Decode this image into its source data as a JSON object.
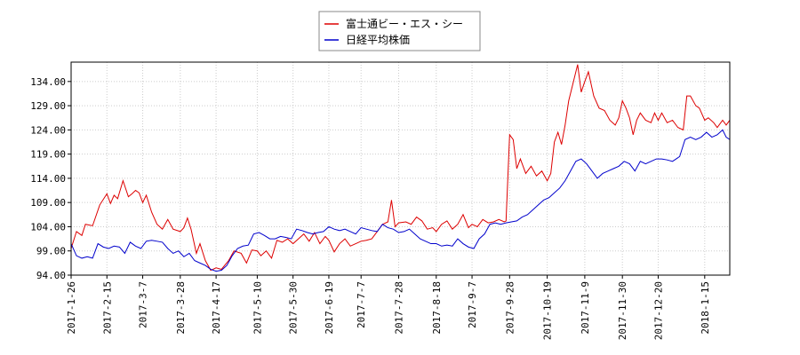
{
  "chart_data": {
    "type": "line",
    "title": "",
    "xlabel": "",
    "ylabel": "",
    "ylim": [
      94.0,
      138.0
    ],
    "y_ticks": [
      "94.00",
      "99.00",
      "104.00",
      "109.00",
      "114.00",
      "119.00",
      "124.00",
      "129.00",
      "134.00"
    ],
    "x_ticks": [
      "2017-1-26",
      "2017-2-15",
      "2017-3-7",
      "2017-3-28",
      "2017-4-17",
      "2017-5-10",
      "2017-5-30",
      "2017-6-19",
      "2017-7-7",
      "2017-7-28",
      "2017-8-18",
      "2017-9-7",
      "2017-9-28",
      "2017-10-19",
      "2017-11-9",
      "2017-11-30",
      "2017-12-20",
      "2018-1-15"
    ],
    "grid": true,
    "legend_position": "top-center",
    "series": [
      {
        "name": "富士通ビー・エス・シー",
        "color": "#dd0000",
        "points": [
          [
            "2017-1-26",
            99.5
          ],
          [
            "2017-1-29",
            103.0
          ],
          [
            "2017-2-1",
            102.2
          ],
          [
            "2017-2-3",
            104.5
          ],
          [
            "2017-2-7",
            104.2
          ],
          [
            "2017-2-11",
            108.5
          ],
          [
            "2017-2-15",
            110.8
          ],
          [
            "2017-2-17",
            108.8
          ],
          [
            "2017-2-19",
            110.5
          ],
          [
            "2017-2-21",
            109.8
          ],
          [
            "2017-2-24",
            113.5
          ],
          [
            "2017-2-27",
            110.2
          ],
          [
            "2017-3-1",
            110.8
          ],
          [
            "2017-3-3",
            111.5
          ],
          [
            "2017-3-5",
            111.0
          ],
          [
            "2017-3-7",
            109.0
          ],
          [
            "2017-3-9",
            110.5
          ],
          [
            "2017-3-12",
            107.0
          ],
          [
            "2017-3-15",
            104.5
          ],
          [
            "2017-3-18",
            103.5
          ],
          [
            "2017-3-21",
            105.5
          ],
          [
            "2017-3-24",
            103.5
          ],
          [
            "2017-3-28",
            103.0
          ],
          [
            "2017-3-30",
            103.8
          ],
          [
            "2017-4-1",
            105.8
          ],
          [
            "2017-4-3",
            103.5
          ],
          [
            "2017-4-6",
            98.5
          ],
          [
            "2017-4-8",
            100.5
          ],
          [
            "2017-4-11",
            97.0
          ],
          [
            "2017-4-14",
            95.0
          ],
          [
            "2017-4-17",
            95.5
          ],
          [
            "2017-4-20",
            95.2
          ],
          [
            "2017-4-24",
            97.0
          ],
          [
            "2017-4-27",
            99.0
          ],
          [
            "2017-5-1",
            98.5
          ],
          [
            "2017-5-4",
            96.5
          ],
          [
            "2017-5-7",
            99.2
          ],
          [
            "2017-5-10",
            99.0
          ],
          [
            "2017-5-12",
            98.0
          ],
          [
            "2017-5-15",
            99.0
          ],
          [
            "2017-5-18",
            97.5
          ],
          [
            "2017-5-21",
            101.2
          ],
          [
            "2017-5-24",
            100.8
          ],
          [
            "2017-5-27",
            101.5
          ],
          [
            "2017-5-30",
            100.5
          ],
          [
            "2017-6-2",
            101.5
          ],
          [
            "2017-6-5",
            102.5
          ],
          [
            "2017-6-8",
            101.0
          ],
          [
            "2017-6-11",
            102.8
          ],
          [
            "2017-6-14",
            100.5
          ],
          [
            "2017-6-17",
            102.0
          ],
          [
            "2017-6-19",
            101.2
          ],
          [
            "2017-6-22",
            98.8
          ],
          [
            "2017-6-25",
            100.5
          ],
          [
            "2017-6-28",
            101.5
          ],
          [
            "2017-7-1",
            100.0
          ],
          [
            "2017-7-4",
            100.5
          ],
          [
            "2017-7-7",
            101.0
          ],
          [
            "2017-7-10",
            101.2
          ],
          [
            "2017-7-13",
            101.5
          ],
          [
            "2017-7-16",
            103.0
          ],
          [
            "2017-7-19",
            104.5
          ],
          [
            "2017-7-22",
            105.0
          ],
          [
            "2017-7-24",
            109.5
          ],
          [
            "2017-7-26",
            104.0
          ],
          [
            "2017-7-28",
            104.8
          ],
          [
            "2017-8-1",
            105.0
          ],
          [
            "2017-8-4",
            104.5
          ],
          [
            "2017-8-7",
            106.0
          ],
          [
            "2017-8-10",
            105.2
          ],
          [
            "2017-8-13",
            103.5
          ],
          [
            "2017-8-16",
            103.8
          ],
          [
            "2017-8-18",
            103.0
          ],
          [
            "2017-8-21",
            104.5
          ],
          [
            "2017-8-24",
            105.2
          ],
          [
            "2017-8-27",
            103.5
          ],
          [
            "2017-8-30",
            104.5
          ],
          [
            "2017-9-2",
            106.5
          ],
          [
            "2017-9-5",
            103.8
          ],
          [
            "2017-9-7",
            104.5
          ],
          [
            "2017-9-10",
            104.0
          ],
          [
            "2017-9-13",
            105.5
          ],
          [
            "2017-9-16",
            104.8
          ],
          [
            "2017-9-19",
            105.0
          ],
          [
            "2017-9-22",
            105.5
          ],
          [
            "2017-9-25",
            105.0
          ],
          [
            "2017-9-26",
            105.2
          ],
          [
            "2017-9-28",
            123.0
          ],
          [
            "2017-9-30",
            122.0
          ],
          [
            "2017-10-2",
            116.0
          ],
          [
            "2017-10-4",
            118.0
          ],
          [
            "2017-10-7",
            115.0
          ],
          [
            "2017-10-10",
            116.5
          ],
          [
            "2017-10-13",
            114.5
          ],
          [
            "2017-10-16",
            115.5
          ],
          [
            "2017-10-19",
            113.5
          ],
          [
            "2017-10-21",
            115.0
          ],
          [
            "2017-10-23",
            121.5
          ],
          [
            "2017-10-25",
            123.5
          ],
          [
            "2017-10-27",
            121.0
          ],
          [
            "2017-10-29",
            125.0
          ],
          [
            "2017-10-31",
            130.0
          ],
          [
            "2017-11-3",
            134.5
          ],
          [
            "2017-11-5",
            137.5
          ],
          [
            "2017-11-7",
            131.8
          ],
          [
            "2017-11-9",
            134.0
          ],
          [
            "2017-11-11",
            136.0
          ],
          [
            "2017-11-14",
            131.0
          ],
          [
            "2017-11-17",
            128.5
          ],
          [
            "2017-11-20",
            128.0
          ],
          [
            "2017-11-23",
            126.0
          ],
          [
            "2017-11-26",
            125.0
          ],
          [
            "2017-11-28",
            126.5
          ],
          [
            "2017-11-30",
            130.0
          ],
          [
            "2017-12-2",
            128.5
          ],
          [
            "2017-12-4",
            126.5
          ],
          [
            "2017-12-6",
            123.0
          ],
          [
            "2017-12-8",
            126.0
          ],
          [
            "2017-12-10",
            127.5
          ],
          [
            "2017-12-13",
            126.0
          ],
          [
            "2017-12-16",
            125.5
          ],
          [
            "2017-12-18",
            127.5
          ],
          [
            "2017-12-20",
            126.0
          ],
          [
            "2017-12-22",
            127.5
          ],
          [
            "2017-12-25",
            125.5
          ],
          [
            "2017-12-28",
            126.0
          ],
          [
            "2017-12-31",
            124.5
          ],
          [
            "2018-1-3",
            124.0
          ],
          [
            "2018-1-5",
            131.0
          ],
          [
            "2018-1-7",
            131.0
          ],
          [
            "2018-1-10",
            129.0
          ],
          [
            "2018-1-12",
            128.5
          ],
          [
            "2018-1-15",
            126.0
          ],
          [
            "2018-1-17",
            126.5
          ],
          [
            "2018-1-20",
            125.5
          ],
          [
            "2018-1-22",
            124.5
          ],
          [
            "2018-1-25",
            126.0
          ],
          [
            "2018-1-27",
            125.0
          ],
          [
            "2018-1-29",
            126.0
          ]
        ]
      },
      {
        "name": "日経平均株価",
        "color": "#0000cc",
        "points": [
          [
            "2017-1-26",
            100.5
          ],
          [
            "2017-1-29",
            98.0
          ],
          [
            "2017-2-1",
            97.5
          ],
          [
            "2017-2-4",
            97.8
          ],
          [
            "2017-2-7",
            97.5
          ],
          [
            "2017-2-10",
            100.5
          ],
          [
            "2017-2-13",
            99.8
          ],
          [
            "2017-2-16",
            99.5
          ],
          [
            "2017-2-19",
            100.0
          ],
          [
            "2017-2-22",
            99.8
          ],
          [
            "2017-2-25",
            98.5
          ],
          [
            "2017-2-28",
            100.8
          ],
          [
            "2017-3-3",
            100.0
          ],
          [
            "2017-3-6",
            99.5
          ],
          [
            "2017-3-9",
            101.0
          ],
          [
            "2017-3-12",
            101.2
          ],
          [
            "2017-3-15",
            101.0
          ],
          [
            "2017-3-18",
            100.8
          ],
          [
            "2017-3-21",
            99.5
          ],
          [
            "2017-3-24",
            98.5
          ],
          [
            "2017-3-27",
            99.0
          ],
          [
            "2017-3-30",
            97.8
          ],
          [
            "2017-4-2",
            98.5
          ],
          [
            "2017-4-5",
            97.0
          ],
          [
            "2017-4-8",
            96.5
          ],
          [
            "2017-4-11",
            96.0
          ],
          [
            "2017-4-14",
            95.2
          ],
          [
            "2017-4-17",
            94.8
          ],
          [
            "2017-4-20",
            95.0
          ],
          [
            "2017-4-23",
            96.0
          ],
          [
            "2017-4-26",
            98.0
          ],
          [
            "2017-4-29",
            99.5
          ],
          [
            "2017-5-2",
            100.0
          ],
          [
            "2017-5-5",
            100.2
          ],
          [
            "2017-5-8",
            102.5
          ],
          [
            "2017-5-11",
            102.8
          ],
          [
            "2017-5-14",
            102.2
          ],
          [
            "2017-5-17",
            101.5
          ],
          [
            "2017-5-20",
            101.5
          ],
          [
            "2017-5-23",
            102.0
          ],
          [
            "2017-5-26",
            101.8
          ],
          [
            "2017-5-29",
            101.5
          ],
          [
            "2017-6-1",
            103.5
          ],
          [
            "2017-6-4",
            103.2
          ],
          [
            "2017-6-7",
            102.8
          ],
          [
            "2017-6-10",
            102.5
          ],
          [
            "2017-6-13",
            102.8
          ],
          [
            "2017-6-16",
            103.0
          ],
          [
            "2017-6-19",
            104.0
          ],
          [
            "2017-6-22",
            103.5
          ],
          [
            "2017-6-25",
            103.2
          ],
          [
            "2017-6-28",
            103.5
          ],
          [
            "2017-7-1",
            103.0
          ],
          [
            "2017-7-4",
            102.5
          ],
          [
            "2017-7-7",
            103.8
          ],
          [
            "2017-7-10",
            103.5
          ],
          [
            "2017-7-13",
            103.2
          ],
          [
            "2017-7-16",
            103.0
          ],
          [
            "2017-7-19",
            104.5
          ],
          [
            "2017-7-22",
            103.8
          ],
          [
            "2017-7-25",
            103.5
          ],
          [
            "2017-7-28",
            102.8
          ],
          [
            "2017-7-31",
            103.0
          ],
          [
            "2017-8-3",
            103.5
          ],
          [
            "2017-8-6",
            102.5
          ],
          [
            "2017-8-9",
            101.5
          ],
          [
            "2017-8-12",
            101.0
          ],
          [
            "2017-8-15",
            100.5
          ],
          [
            "2017-8-18",
            100.5
          ],
          [
            "2017-8-21",
            100.0
          ],
          [
            "2017-8-24",
            100.2
          ],
          [
            "2017-8-27",
            100.0
          ],
          [
            "2017-8-30",
            101.5
          ],
          [
            "2017-9-2",
            100.5
          ],
          [
            "2017-9-5",
            99.8
          ],
          [
            "2017-9-8",
            99.5
          ],
          [
            "2017-9-11",
            101.5
          ],
          [
            "2017-9-14",
            102.5
          ],
          [
            "2017-9-17",
            104.5
          ],
          [
            "2017-9-20",
            104.8
          ],
          [
            "2017-9-23",
            104.5
          ],
          [
            "2017-9-26",
            104.8
          ],
          [
            "2017-9-29",
            105.0
          ],
          [
            "2017-10-2",
            105.2
          ],
          [
            "2017-10-5",
            106.0
          ],
          [
            "2017-10-8",
            106.5
          ],
          [
            "2017-10-11",
            107.5
          ],
          [
            "2017-10-14",
            108.5
          ],
          [
            "2017-10-17",
            109.5
          ],
          [
            "2017-10-20",
            110.0
          ],
          [
            "2017-10-23",
            111.0
          ],
          [
            "2017-10-26",
            112.0
          ],
          [
            "2017-10-29",
            113.5
          ],
          [
            "2017-11-1",
            115.5
          ],
          [
            "2017-11-4",
            117.5
          ],
          [
            "2017-11-7",
            118.0
          ],
          [
            "2017-11-10",
            117.0
          ],
          [
            "2017-11-13",
            115.5
          ],
          [
            "2017-11-16",
            114.0
          ],
          [
            "2017-11-19",
            115.0
          ],
          [
            "2017-11-22",
            115.5
          ],
          [
            "2017-11-25",
            116.0
          ],
          [
            "2017-11-28",
            116.5
          ],
          [
            "2017-12-1",
            117.5
          ],
          [
            "2017-12-4",
            117.0
          ],
          [
            "2017-12-7",
            115.5
          ],
          [
            "2017-12-10",
            117.5
          ],
          [
            "2017-12-13",
            117.0
          ],
          [
            "2017-12-16",
            117.5
          ],
          [
            "2017-12-19",
            118.0
          ],
          [
            "2017-12-22",
            118.0
          ],
          [
            "2017-12-25",
            117.8
          ],
          [
            "2017-12-28",
            117.5
          ],
          [
            "2018-1-1",
            118.5
          ],
          [
            "2018-1-4",
            122.0
          ],
          [
            "2018-1-7",
            122.5
          ],
          [
            "2018-1-10",
            122.0
          ],
          [
            "2018-1-13",
            122.5
          ],
          [
            "2018-1-16",
            123.5
          ],
          [
            "2018-1-19",
            122.5
          ],
          [
            "2018-1-22",
            123.0
          ],
          [
            "2018-1-25",
            124.0
          ],
          [
            "2018-1-27",
            122.5
          ],
          [
            "2018-1-29",
            122.0
          ]
        ]
      }
    ]
  }
}
